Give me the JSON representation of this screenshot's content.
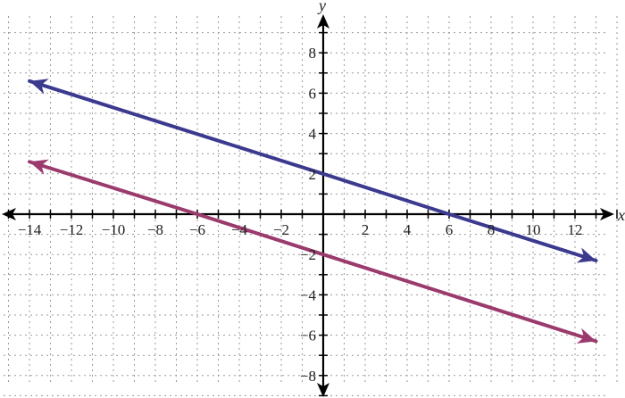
{
  "chart_data": {
    "type": "line",
    "title": "",
    "xlabel": "x",
    "ylabel": "y",
    "xlim": [
      -15,
      14
    ],
    "ylim": [
      -9,
      9.5
    ],
    "grid": true,
    "x_ticks": [
      -14,
      -12,
      -10,
      -8,
      -6,
      -4,
      -2,
      2,
      4,
      6,
      8,
      10,
      12
    ],
    "x_tick_labels": [
      "−14",
      "−12",
      "−10",
      "−8",
      "−6",
      "−4",
      "−2",
      "2",
      "4",
      "6",
      "8",
      "10",
      "12"
    ],
    "y_ticks": [
      8,
      6,
      4,
      2,
      -2,
      -4,
      -6,
      -8
    ],
    "y_tick_labels": [
      "8",
      "6",
      "4",
      "2",
      "−2",
      "−4",
      "−6",
      "−8"
    ],
    "series": [
      {
        "color": "#3c3a8f",
        "arrows": "both",
        "points": [
          [
            -14,
            6.6
          ],
          [
            0,
            2
          ],
          [
            6,
            0
          ],
          [
            13,
            -2.3
          ]
        ]
      },
      {
        "color": "#9b3a6c",
        "arrows": "both",
        "points": [
          [
            -14,
            2.6
          ],
          [
            -6,
            0
          ],
          [
            0,
            -2
          ],
          [
            13,
            -6.3
          ]
        ]
      }
    ]
  }
}
